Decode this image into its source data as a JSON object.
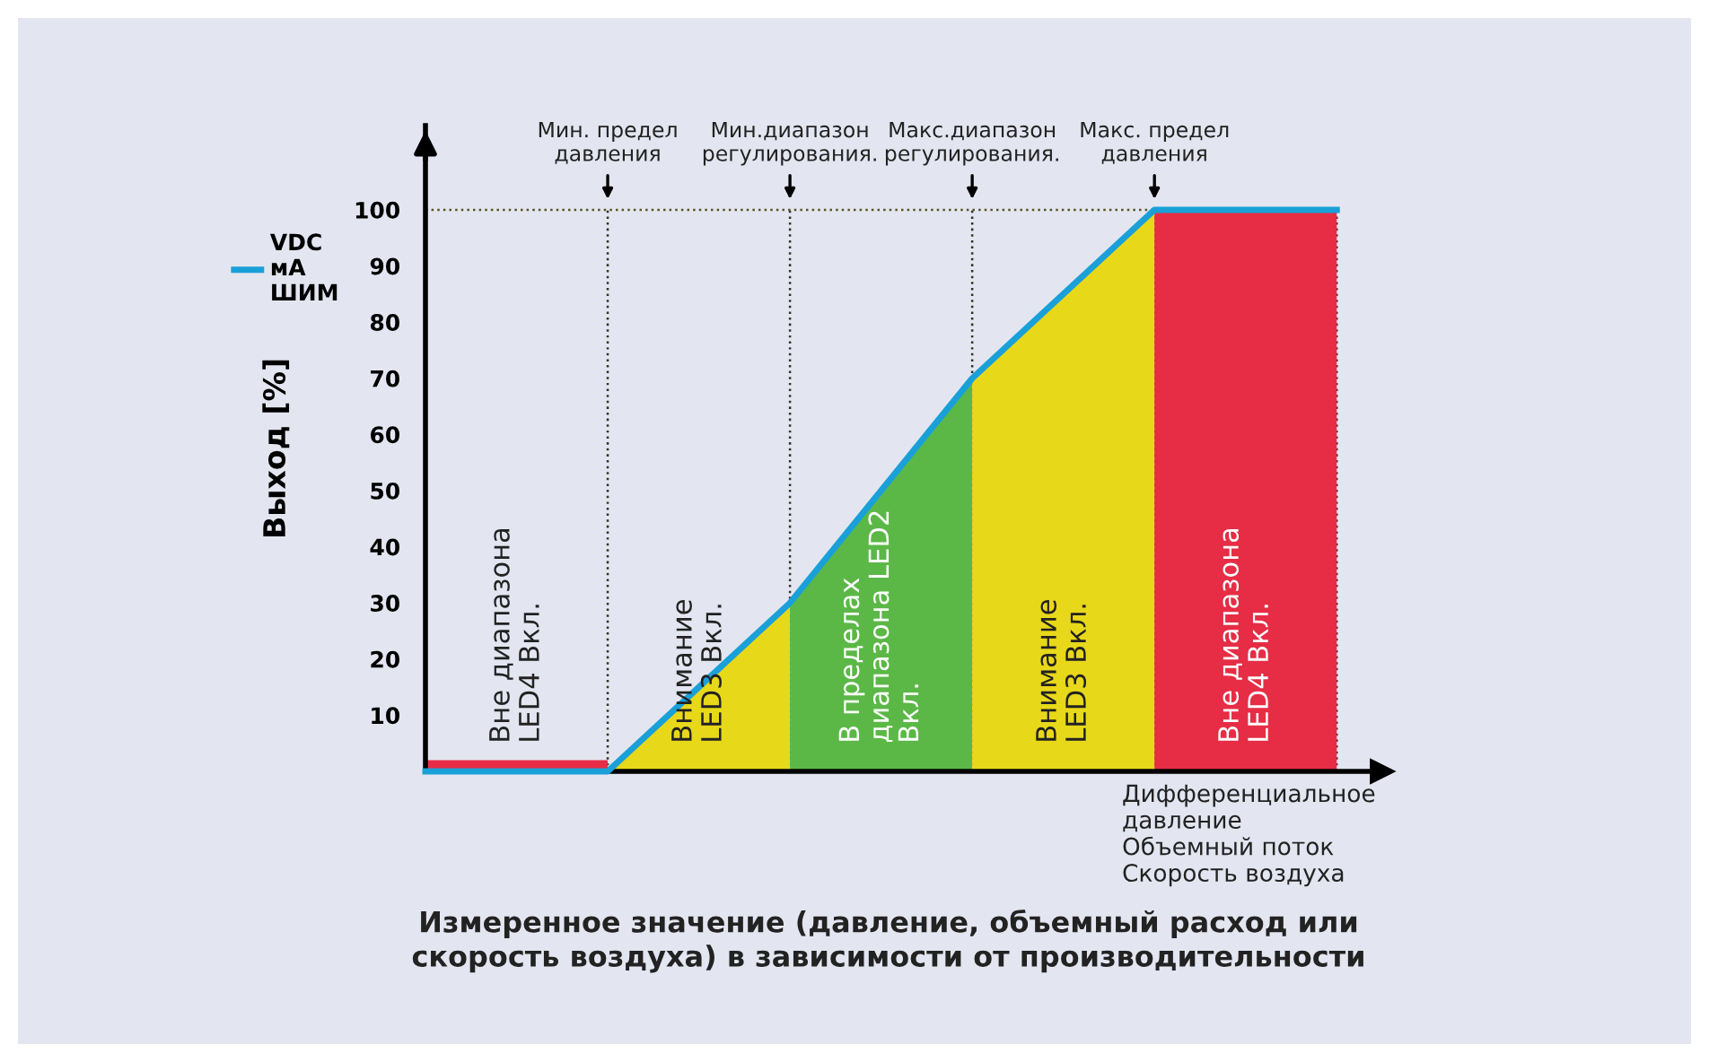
{
  "chart_data": {
    "type": "area",
    "ylabel": "Выход [%]",
    "xlabel": "Дифференциальное\nдавление\nОбъемный поток\nСкорость воздуха",
    "annotations": [
      "Измеренное значение (давление, объемный расход или\nскорость воздуха) в зависимости от производительности"
    ],
    "categories": [
      null,
      "Мин. предел\nдавления",
      "Мин.диапазон\nрегулирования.",
      "Макс.диапазон\nрегулирования.",
      "Макс. предел\nдавления",
      null
    ],
    "ylim": [
      0,
      115
    ],
    "yticks": [
      10,
      20,
      30,
      40,
      50,
      60,
      70,
      80,
      90,
      100
    ],
    "grid": "x",
    "legend": "left",
    "series": [
      {
        "name": "Вне диапазона\nLED4 Вкл.",
        "color": "#e62d45",
        "values": [
          2,
          2,
          null,
          null,
          null,
          null
        ]
      },
      {
        "name": "Внимание\nLED3 Вкл.",
        "color": "#e8d81a",
        "values": [
          null,
          0,
          30,
          null,
          null,
          null
        ]
      },
      {
        "name": "В пределах\nдиапазона LED2\nВкл.",
        "color": "#5bb847",
        "values": [
          null,
          null,
          30,
          70,
          null,
          null
        ]
      },
      {
        "name": "Внимание\nLED3 Вкл.",
        "color": "#e8d81a",
        "values": [
          null,
          null,
          null,
          70,
          100,
          null
        ]
      },
      {
        "name": "Вне диапазона\nLED4 Вкл.",
        "color": "#e62d45",
        "values": [
          null,
          null,
          null,
          null,
          100,
          100
        ]
      },
      {
        "name": "VDC\nмА\nШИМ",
        "type": "line",
        "color": "#1aa0d8",
        "values": [
          0,
          0,
          30,
          70,
          100,
          100
        ]
      }
    ],
    "ref_lines": [
      {
        "axis": "y",
        "value": 100,
        "line_style": "dotted",
        "color": "#555522"
      }
    ]
  }
}
